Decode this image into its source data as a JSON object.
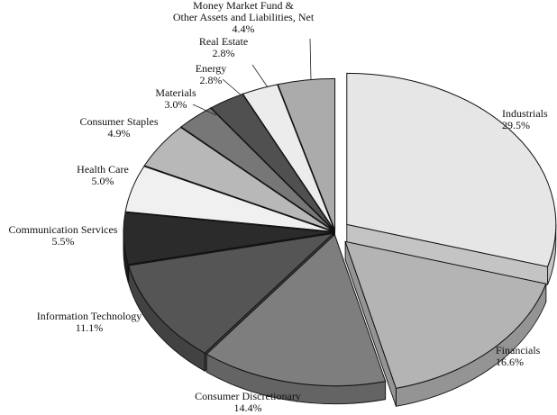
{
  "chart_data": {
    "type": "pie",
    "style": "3d-exploded",
    "title": "",
    "slices": [
      {
        "label": "Industrials",
        "label_lines": [
          "Industrials"
        ],
        "pct_text": "29.5%",
        "value": 29.5,
        "color": "#e6e6e6",
        "wall": "#c4c4c4"
      },
      {
        "label": "Financials",
        "label_lines": [
          "Financials"
        ],
        "pct_text": "16.6%",
        "value": 16.6,
        "color": "#b4b4b4",
        "wall": "#949494"
      },
      {
        "label": "Consumer Discretionary",
        "label_lines": [
          "Consumer Discretionary"
        ],
        "pct_text": "14.4%",
        "value": 14.4,
        "color": "#7e7e7e",
        "wall": "#646464"
      },
      {
        "label": "Information Technology",
        "label_lines": [
          "Information Technology"
        ],
        "pct_text": "11.1%",
        "value": 11.1,
        "color": "#555555",
        "wall": "#424242"
      },
      {
        "label": "Communication Services",
        "label_lines": [
          "Communication Services"
        ],
        "pct_text": "5.5%",
        "value": 5.5,
        "color": "#2b2b2b",
        "wall": "#1c1c1c"
      },
      {
        "label": "Health Care",
        "label_lines": [
          "Health Care"
        ],
        "pct_text": "5.0%",
        "value": 5.0,
        "color": "#f0f0f0",
        "wall": "#cfcfcf"
      },
      {
        "label": "Consumer Staples",
        "label_lines": [
          "Consumer Staples"
        ],
        "pct_text": "4.9%",
        "value": 4.9,
        "color": "#b8b8b8",
        "wall": "#979797"
      },
      {
        "label": "Materials",
        "label_lines": [
          "Materials"
        ],
        "pct_text": "3.0%",
        "value": 3.0,
        "color": "#777777",
        "wall": "#5e5e5e"
      },
      {
        "label": "Energy",
        "label_lines": [
          "Energy"
        ],
        "pct_text": "2.8%",
        "value": 2.8,
        "color": "#505050",
        "wall": "#3c3c3c"
      },
      {
        "label": "Real Estate",
        "label_lines": [
          "Real Estate"
        ],
        "pct_text": "2.8%",
        "value": 2.8,
        "color": "#ececec",
        "wall": "#cacaca"
      },
      {
        "label": "Money Market Fund & Other Assets and Liabilities, Net",
        "label_lines": [
          "Money Market Fund &",
          "Other Assets and Liabilities, Net"
        ],
        "pct_text": "4.4%",
        "value": 4.4,
        "color": "#ababab",
        "wall": "#8c8c8c"
      }
    ]
  }
}
